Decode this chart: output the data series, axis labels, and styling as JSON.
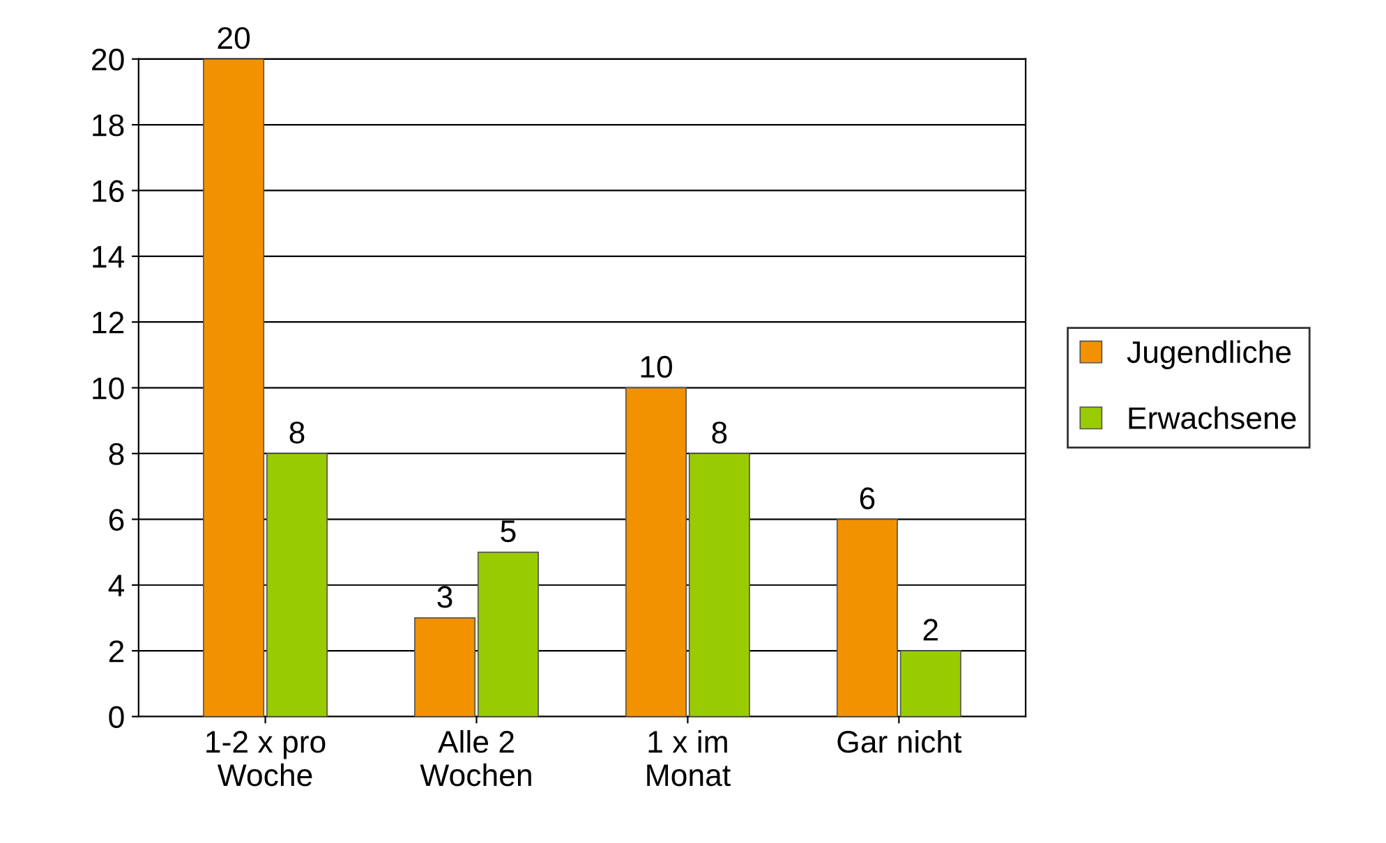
{
  "chart_data": {
    "type": "bar",
    "categories": [
      "1-2 x pro\nWoche",
      "Alle 2\nWochen",
      "1 x im\nMonat",
      "Gar nicht"
    ],
    "series": [
      {
        "name": "Jugendliche",
        "color": "#f39200",
        "values": [
          20,
          3,
          10,
          6
        ]
      },
      {
        "name": "Erwachsene",
        "color": "#99cc00",
        "values": [
          8,
          5,
          8,
          2
        ]
      }
    ],
    "ylim": [
      0,
      20
    ],
    "yticks": [
      0,
      2,
      4,
      6,
      8,
      10,
      12,
      14,
      16,
      18,
      20
    ],
    "grid": "y",
    "legend": "right",
    "data_labels": true
  }
}
